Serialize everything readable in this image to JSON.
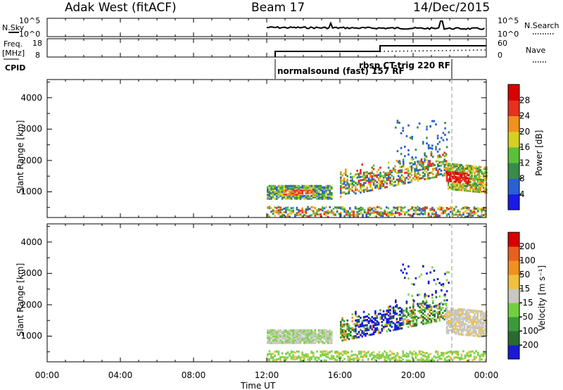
{
  "header": {
    "title": "Adak West (fitACF)",
    "beam": "Beam 17",
    "date": "14/Dec/2015"
  },
  "top_panels": {
    "nsky_label": "N.Sky",
    "nsearch_label": "N.Search",
    "nsky_ticks": [
      "10^5",
      "10^0"
    ],
    "nsearch_ticks": [
      "10^5",
      "10^0"
    ],
    "freq_label": "Freq.",
    "freq_unit": "[MHz]",
    "freq_ticks": [
      "18",
      "8"
    ],
    "nave_label": "Nave",
    "nave_ticks": [
      "60",
      "0"
    ],
    "cpid_label": "CPID",
    "cpid_entries": [
      {
        "text": "normalsound (fast) 157 RF",
        "start_hour": 12.0
      },
      {
        "text": "rbsp CT-trig 220 RF",
        "start_hour": 21.9
      }
    ]
  },
  "time_axis": {
    "ticks": [
      "00:00",
      "04:00",
      "08:00",
      "12:00",
      "16:00",
      "20:00",
      "00:00"
    ],
    "label": "Time UT"
  },
  "chart_data": [
    {
      "type": "heatmap",
      "name": "power",
      "ylabel": "Slant Range [km]",
      "yticks": [
        "1000",
        "2000",
        "3000",
        "4000"
      ],
      "ylim": [
        180,
        4580
      ],
      "xlim": [
        0,
        24
      ],
      "colorbar_label": "Power [dB]",
      "colorbar_ticks": [
        "4",
        "8",
        "12",
        "16",
        "20",
        "24",
        "28"
      ],
      "colorbar_colors": [
        "#1a1ae6",
        "#2a5fd6",
        "#3a8a4a",
        "#5cbf3a",
        "#d6d020",
        "#f09020",
        "#e83020",
        "#d80000"
      ],
      "cpid_change_hour": 21.9
    },
    {
      "type": "heatmap",
      "name": "velocity",
      "ylabel": "Slant Range [km]",
      "yticks": [
        "1000",
        "2000",
        "3000",
        "4000"
      ],
      "ylim": [
        180,
        4580
      ],
      "xlim": [
        0,
        24
      ],
      "colorbar_label": "Velocity [m s⁻¹]",
      "colorbar_ticks": [
        "200",
        "100",
        "50",
        "15",
        "-15",
        "-50",
        "-100",
        "-200"
      ],
      "colorbar_colors": [
        "#1a1ad6",
        "#2a6a30",
        "#3a9a3a",
        "#70d040",
        "#c8c8c0",
        "#f0c040",
        "#f09020",
        "#e86020",
        "#d80000"
      ],
      "cpid_change_hour": 21.9
    }
  ]
}
